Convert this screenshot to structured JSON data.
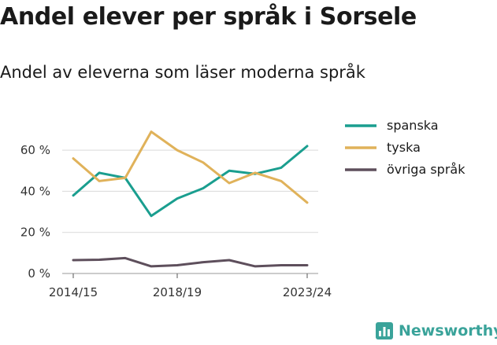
{
  "header": {
    "title": "Andel elever per språk i Sorsele",
    "subtitle": "Andel av eleverna som läser moderna språk"
  },
  "brand": {
    "name": "Newsworthy",
    "color": "#3aa39a"
  },
  "chart_data": {
    "type": "line",
    "title": "Andel elever per språk i Sorsele",
    "subtitle": "Andel av eleverna som läser moderna språk",
    "xlabel": "",
    "ylabel": "",
    "x": [
      "2014/15",
      "2015/16",
      "2016/17",
      "2017/18",
      "2018/19",
      "2019/20",
      "2020/21",
      "2021/22",
      "2022/23",
      "2023/24"
    ],
    "x_tick_labels": [
      "2014/15",
      "2018/19",
      "2023/24"
    ],
    "y_ticks": [
      0,
      20,
      40,
      60
    ],
    "y_tick_labels": [
      "0 %",
      "20 %",
      "40 %",
      "60 %"
    ],
    "ylim": [
      0,
      70
    ],
    "grid": true,
    "legend_position": "right",
    "series": [
      {
        "name": "spanska",
        "color": "#1a9e8f",
        "values": [
          38,
          49,
          46.5,
          28,
          36.5,
          41.5,
          50,
          48.5,
          51.5,
          62
        ]
      },
      {
        "name": "tyska",
        "color": "#e0b25a",
        "values": [
          56,
          45,
          46.5,
          69,
          60,
          54,
          44,
          49,
          45,
          34.5
        ]
      },
      {
        "name": "övriga språk",
        "color": "#5e4f5c",
        "values": [
          6.5,
          6.7,
          7.5,
          3.5,
          4,
          5.5,
          6.5,
          3.5,
          4,
          4
        ]
      }
    ]
  }
}
